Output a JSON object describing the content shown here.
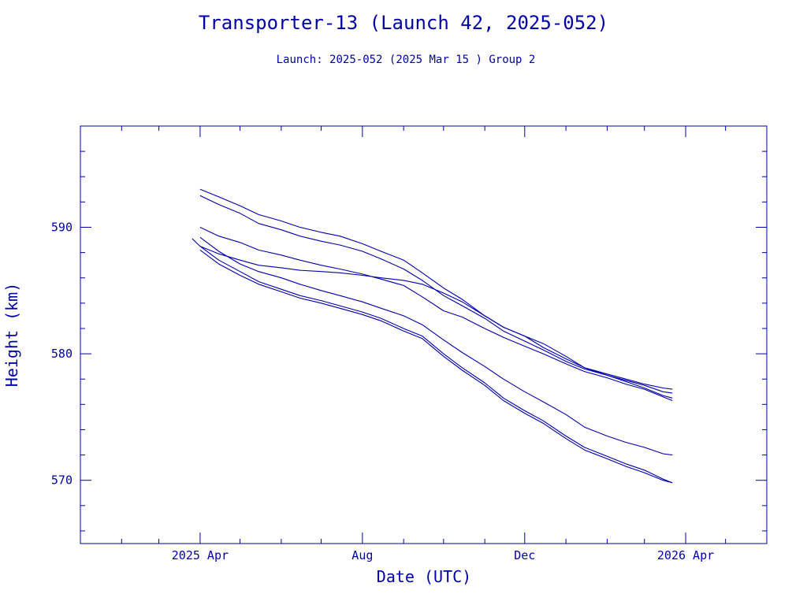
{
  "header": {
    "title": "Transporter-13 (Launch 42, 2025-052)",
    "subtitle": "Launch: 2025-052  (2025 Mar 15 )  Group 2"
  },
  "colors": {
    "ink": "#0000a8",
    "background": "#ffffff"
  },
  "chart_data": {
    "type": "line",
    "title": "Transporter-13 (Launch 42, 2025-052)",
    "subtitle": "Launch: 2025-052  (2025 Mar 15 )  Group 2",
    "xlabel": "Date (UTC)",
    "ylabel": "Height (km)",
    "xlim": [
      "2025-01-01",
      "2026-06-01"
    ],
    "ylim": [
      565,
      598
    ],
    "x_ticks": [
      {
        "value": "2025-04-01",
        "label": "2025 Apr"
      },
      {
        "value": "2025-08-01",
        "label": "Aug"
      },
      {
        "value": "2025-12-01",
        "label": "Dec"
      },
      {
        "value": "2026-04-01",
        "label": "2026 Apr"
      }
    ],
    "y_ticks": [
      {
        "value": 570,
        "label": "570"
      },
      {
        "value": 580,
        "label": "580"
      },
      {
        "value": 590,
        "label": "590"
      }
    ],
    "grid": false,
    "legend": "none",
    "series": [
      {
        "points": [
          [
            "2025-04-01",
            593.0
          ],
          [
            "2025-04-15",
            592.4
          ],
          [
            "2025-05-01",
            591.7
          ],
          [
            "2025-05-15",
            591.0
          ],
          [
            "2025-06-01",
            590.5
          ],
          [
            "2025-06-15",
            590.0
          ],
          [
            "2025-07-01",
            589.6
          ],
          [
            "2025-07-15",
            589.3
          ],
          [
            "2025-08-01",
            588.7
          ],
          [
            "2025-08-15",
            588.1
          ],
          [
            "2025-09-01",
            587.4
          ],
          [
            "2025-09-15",
            586.4
          ],
          [
            "2025-10-01",
            585.2
          ],
          [
            "2025-10-15",
            584.3
          ],
          [
            "2025-11-01",
            583.0
          ],
          [
            "2025-11-15",
            582.1
          ],
          [
            "2025-12-01",
            581.4
          ],
          [
            "2025-12-15",
            580.8
          ],
          [
            "2026-01-01",
            579.8
          ],
          [
            "2026-01-15",
            578.9
          ],
          [
            "2026-02-01",
            578.3
          ],
          [
            "2026-02-15",
            577.9
          ],
          [
            "2026-03-01",
            577.5
          ],
          [
            "2026-03-15",
            577.0
          ],
          [
            "2026-03-22",
            576.9
          ]
        ]
      },
      {
        "points": [
          [
            "2025-04-01",
            592.5
          ],
          [
            "2025-04-15",
            591.8
          ],
          [
            "2025-05-01",
            591.1
          ],
          [
            "2025-05-15",
            590.3
          ],
          [
            "2025-06-01",
            589.8
          ],
          [
            "2025-06-15",
            589.3
          ],
          [
            "2025-07-01",
            588.9
          ],
          [
            "2025-07-15",
            588.6
          ],
          [
            "2025-08-01",
            588.1
          ],
          [
            "2025-08-15",
            587.5
          ],
          [
            "2025-09-01",
            586.7
          ],
          [
            "2025-09-15",
            585.8
          ],
          [
            "2025-10-01",
            584.6
          ],
          [
            "2025-10-15",
            583.8
          ],
          [
            "2025-11-01",
            582.8
          ],
          [
            "2025-11-15",
            581.8
          ],
          [
            "2025-12-01",
            581.0
          ],
          [
            "2025-12-15",
            580.3
          ],
          [
            "2026-01-01",
            579.4
          ],
          [
            "2026-01-15",
            578.8
          ],
          [
            "2026-02-01",
            578.3
          ],
          [
            "2026-02-15",
            577.8
          ],
          [
            "2026-03-01",
            577.3
          ],
          [
            "2026-03-15",
            576.7
          ],
          [
            "2026-03-22",
            576.5
          ]
        ]
      },
      {
        "points": [
          [
            "2025-04-01",
            590.0
          ],
          [
            "2025-04-15",
            589.3
          ],
          [
            "2025-05-01",
            588.8
          ],
          [
            "2025-05-15",
            588.2
          ],
          [
            "2025-06-01",
            587.8
          ],
          [
            "2025-06-15",
            587.4
          ],
          [
            "2025-07-01",
            587.0
          ],
          [
            "2025-07-15",
            586.7
          ],
          [
            "2025-08-01",
            586.3
          ],
          [
            "2025-08-15",
            585.9
          ],
          [
            "2025-09-01",
            585.4
          ],
          [
            "2025-09-15",
            584.5
          ],
          [
            "2025-10-01",
            583.4
          ],
          [
            "2025-10-15",
            582.9
          ],
          [
            "2025-11-01",
            582.0
          ],
          [
            "2025-11-15",
            581.3
          ],
          [
            "2025-12-01",
            580.6
          ],
          [
            "2025-12-15",
            580.0
          ],
          [
            "2026-01-01",
            579.2
          ],
          [
            "2026-01-15",
            578.6
          ],
          [
            "2026-02-01",
            578.1
          ],
          [
            "2026-02-15",
            577.6
          ],
          [
            "2026-03-01",
            577.2
          ],
          [
            "2026-03-15",
            576.6
          ],
          [
            "2026-03-22",
            576.3
          ]
        ]
      },
      {
        "points": [
          [
            "2025-03-26",
            589.1
          ],
          [
            "2025-04-01",
            588.5
          ],
          [
            "2025-04-15",
            587.9
          ],
          [
            "2025-05-01",
            587.4
          ],
          [
            "2025-05-15",
            587.0
          ],
          [
            "2025-06-01",
            586.8
          ],
          [
            "2025-06-15",
            586.6
          ],
          [
            "2025-07-01",
            586.5
          ],
          [
            "2025-07-15",
            586.4
          ],
          [
            "2025-08-01",
            586.2
          ],
          [
            "2025-08-15",
            586.0
          ],
          [
            "2025-09-01",
            585.8
          ],
          [
            "2025-09-15",
            585.5
          ],
          [
            "2025-10-01",
            584.8
          ],
          [
            "2025-10-15",
            584.1
          ],
          [
            "2025-11-01",
            583.0
          ],
          [
            "2025-11-15",
            582.1
          ],
          [
            "2025-12-01",
            581.4
          ],
          [
            "2025-12-15",
            580.5
          ],
          [
            "2026-01-01",
            579.6
          ],
          [
            "2026-01-15",
            578.9
          ],
          [
            "2026-02-01",
            578.4
          ],
          [
            "2026-02-15",
            578.0
          ],
          [
            "2026-03-01",
            577.6
          ],
          [
            "2026-03-15",
            577.3
          ],
          [
            "2026-03-22",
            577.2
          ]
        ]
      },
      {
        "points": [
          [
            "2025-04-01",
            589.2
          ],
          [
            "2025-04-15",
            588.1
          ],
          [
            "2025-05-01",
            587.1
          ],
          [
            "2025-05-15",
            586.5
          ],
          [
            "2025-06-01",
            586.0
          ],
          [
            "2025-06-15",
            585.5
          ],
          [
            "2025-07-01",
            585.0
          ],
          [
            "2025-07-15",
            584.6
          ],
          [
            "2025-08-01",
            584.1
          ],
          [
            "2025-08-15",
            583.6
          ],
          [
            "2025-09-01",
            583.0
          ],
          [
            "2025-09-15",
            582.3
          ],
          [
            "2025-10-01",
            581.1
          ],
          [
            "2025-10-15",
            580.1
          ],
          [
            "2025-11-01",
            579.0
          ],
          [
            "2025-11-15",
            578.0
          ],
          [
            "2025-12-01",
            577.0
          ],
          [
            "2025-12-15",
            576.2
          ],
          [
            "2026-01-01",
            575.2
          ],
          [
            "2026-01-15",
            574.2
          ],
          [
            "2026-02-01",
            573.5
          ],
          [
            "2026-02-15",
            573.0
          ],
          [
            "2026-03-01",
            572.6
          ],
          [
            "2026-03-15",
            572.1
          ],
          [
            "2026-03-22",
            572.0
          ]
        ]
      },
      {
        "points": [
          [
            "2025-04-01",
            588.5
          ],
          [
            "2025-04-15",
            587.4
          ],
          [
            "2025-05-01",
            586.5
          ],
          [
            "2025-05-15",
            585.7
          ],
          [
            "2025-06-01",
            585.1
          ],
          [
            "2025-06-15",
            584.6
          ],
          [
            "2025-07-01",
            584.2
          ],
          [
            "2025-07-15",
            583.8
          ],
          [
            "2025-08-01",
            583.3
          ],
          [
            "2025-08-15",
            582.8
          ],
          [
            "2025-09-01",
            582.0
          ],
          [
            "2025-09-15",
            581.4
          ],
          [
            "2025-10-01",
            580.0
          ],
          [
            "2025-10-15",
            578.9
          ],
          [
            "2025-11-01",
            577.7
          ],
          [
            "2025-11-15",
            576.5
          ],
          [
            "2025-12-01",
            575.5
          ],
          [
            "2025-12-15",
            574.7
          ],
          [
            "2026-01-01",
            573.5
          ],
          [
            "2026-01-15",
            572.6
          ],
          [
            "2026-02-01",
            571.9
          ],
          [
            "2026-02-15",
            571.3
          ],
          [
            "2026-03-01",
            570.8
          ],
          [
            "2026-03-15",
            570.1
          ],
          [
            "2026-03-22",
            569.8
          ]
        ]
      },
      {
        "points": [
          [
            "2025-04-01",
            588.2
          ],
          [
            "2025-04-15",
            587.1
          ],
          [
            "2025-05-01",
            586.2
          ],
          [
            "2025-05-15",
            585.5
          ],
          [
            "2025-06-01",
            584.9
          ],
          [
            "2025-06-15",
            584.4
          ],
          [
            "2025-07-01",
            584.0
          ],
          [
            "2025-07-15",
            583.6
          ],
          [
            "2025-08-01",
            583.1
          ],
          [
            "2025-08-15",
            582.6
          ],
          [
            "2025-09-01",
            581.8
          ],
          [
            "2025-09-15",
            581.2
          ],
          [
            "2025-10-01",
            579.8
          ],
          [
            "2025-10-15",
            578.7
          ],
          [
            "2025-11-01",
            577.5
          ],
          [
            "2025-11-15",
            576.3
          ],
          [
            "2025-12-01",
            575.3
          ],
          [
            "2025-12-15",
            574.5
          ],
          [
            "2026-01-01",
            573.3
          ],
          [
            "2026-01-15",
            572.4
          ],
          [
            "2026-02-01",
            571.7
          ],
          [
            "2026-02-15",
            571.1
          ],
          [
            "2026-03-01",
            570.6
          ],
          [
            "2026-03-15",
            570.0
          ],
          [
            "2026-03-22",
            569.8
          ]
        ]
      }
    ]
  }
}
